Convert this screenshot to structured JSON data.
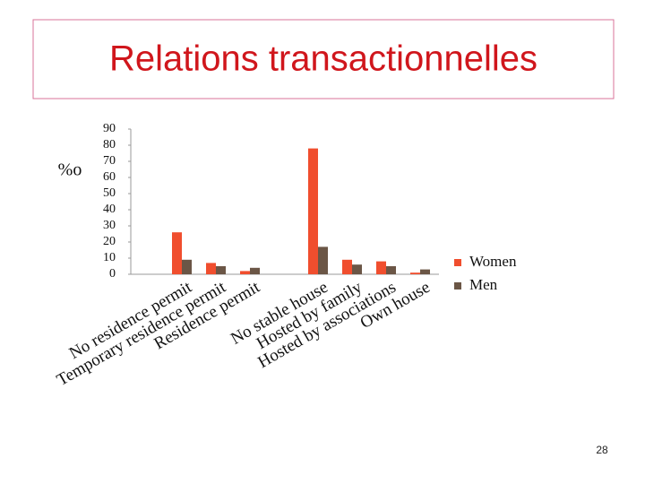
{
  "title": "Relations transactionnelles",
  "page_number": "28",
  "chart_data": {
    "type": "bar",
    "ylabel": "%o",
    "categories": [
      "No residence permit",
      "Temporary residence permit",
      "Residence permit",
      null,
      "No stable house",
      "Hosted by family",
      "Hosted by associations",
      "Own house"
    ],
    "series": [
      {
        "name": "Women",
        "color": "#f04e2e",
        "values": [
          26,
          7,
          2,
          null,
          78,
          9,
          8,
          1
        ]
      },
      {
        "name": "Men",
        "color": "#6b5646",
        "values": [
          9,
          5,
          4,
          null,
          17,
          6,
          5,
          3
        ]
      }
    ],
    "ylim": [
      0,
      90
    ],
    "yticks": [
      0,
      10,
      20,
      30,
      40,
      50,
      60,
      70,
      80,
      90
    ],
    "grid": false,
    "legend": "right"
  }
}
